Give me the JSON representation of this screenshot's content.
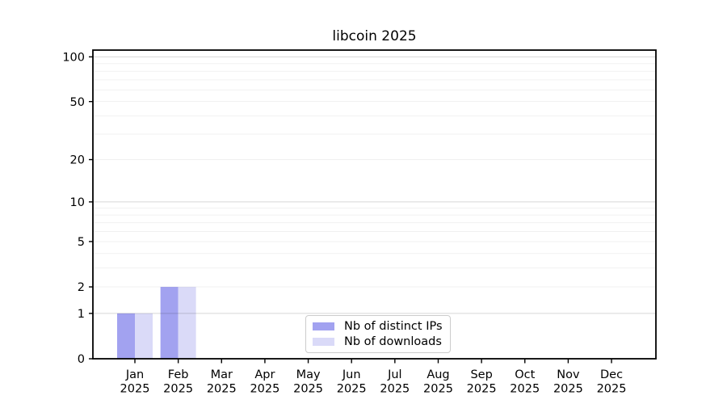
{
  "window": {
    "background": "#ffffff"
  },
  "chart_data": {
    "type": "bar",
    "title": "libcoin 2025",
    "categories": [
      "Jan\n2025",
      "Feb\n2025",
      "Mar\n2025",
      "Apr\n2025",
      "May\n2025",
      "Jun\n2025",
      "Jul\n2025",
      "Aug\n2025",
      "Sep\n2025",
      "Oct\n2025",
      "Nov\n2025",
      "Dec\n2025"
    ],
    "series": [
      {
        "name": "Nb of distinct IPs",
        "color": "#a2a2f0",
        "values": [
          1,
          2,
          0,
          0,
          0,
          0,
          0,
          0,
          0,
          0,
          0,
          0
        ]
      },
      {
        "name": "Nb of downloads",
        "color": "#dadaf8",
        "values": [
          1,
          2,
          0,
          0,
          0,
          0,
          0,
          0,
          0,
          0,
          0,
          0
        ]
      }
    ],
    "xlabel": "",
    "ylabel": "",
    "yscale": "log1p",
    "ylim": [
      0,
      111
    ],
    "y_ticks": [
      0,
      1,
      2,
      5,
      10,
      20,
      50,
      100
    ],
    "y_major_gridlines": [
      1,
      10,
      100
    ],
    "y_minor_gridlines": [
      2,
      3,
      4,
      5,
      6,
      7,
      8,
      9,
      20,
      30,
      40,
      50,
      60,
      70,
      80,
      90
    ],
    "grid": "on",
    "legend_position": "lower center",
    "colors": {
      "axis": "#000000",
      "grid_major": "rgba(0,0,0,0.16)",
      "grid_minor": "rgba(0,0,0,0.06)",
      "legend_border": "#cccccc"
    }
  }
}
